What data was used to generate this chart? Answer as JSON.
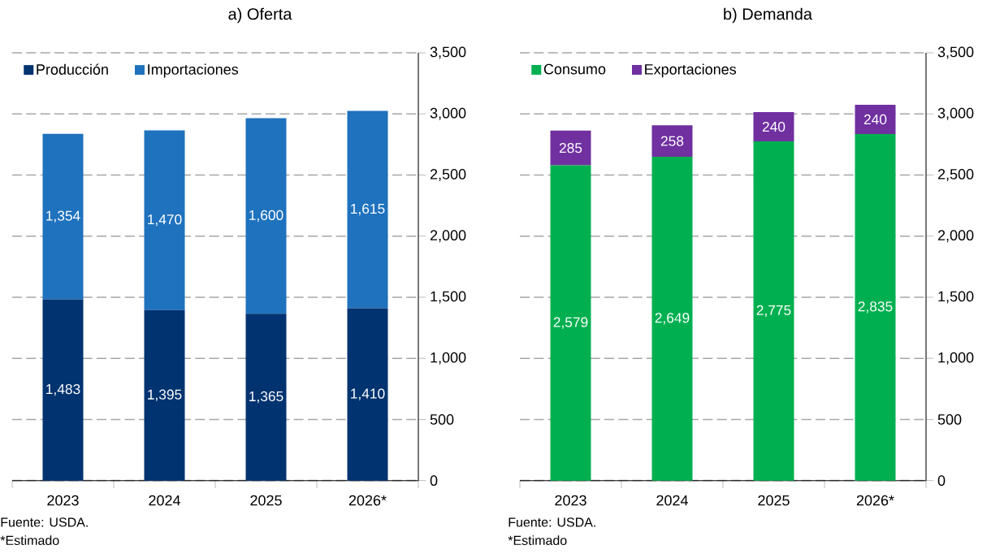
{
  "chart_data": [
    {
      "type": "bar",
      "stacked": true,
      "title": "a) Oferta",
      "categories": [
        "2023",
        "2024",
        "2025",
        "2026*"
      ],
      "series": [
        {
          "name": "Producción",
          "color": "#003370",
          "values": [
            1483,
            1395,
            1365,
            1410
          ],
          "value_labels": [
            "1,483",
            "1,395",
            "1,365",
            "1,410"
          ]
        },
        {
          "name": "Importaciones",
          "color": "#1f72bd",
          "values": [
            1354,
            1470,
            1600,
            1615
          ],
          "value_labels": [
            "1,354",
            "1,470",
            "1,600",
            "1,615"
          ]
        }
      ],
      "ylim": [
        0,
        3500
      ],
      "yticks": [
        {
          "value": 0,
          "label": "0"
        },
        {
          "value": 500,
          "label": "500"
        },
        {
          "value": 1000,
          "label": "1,000"
        },
        {
          "value": 1500,
          "label": "1,500"
        },
        {
          "value": 2000,
          "label": "2,000"
        },
        {
          "value": 2500,
          "label": "2,500"
        },
        {
          "value": 3000,
          "label": "3,000"
        },
        {
          "value": 3500,
          "label": "3,500"
        }
      ],
      "grid": "y",
      "legend": "top left",
      "annotations": [
        "Fuente: USDA.",
        "*Estimado"
      ]
    },
    {
      "type": "bar",
      "stacked": true,
      "title": "b) Demanda",
      "categories": [
        "2023",
        "2024",
        "2025",
        "2026*"
      ],
      "series": [
        {
          "name": "Consumo",
          "color": "#00b050",
          "values": [
            2579,
            2649,
            2775,
            2835
          ],
          "value_labels": [
            "2,579",
            "2,649",
            "2,775",
            "2,835"
          ]
        },
        {
          "name": "Exportaciones",
          "color": "#7030a0",
          "values": [
            285,
            258,
            240,
            240
          ],
          "data_labels": true
        }
      ],
      "ylim": [
        0,
        3500
      ],
      "yticks": [
        {
          "value": 0,
          "label": "0"
        },
        {
          "value": 500,
          "label": "500"
        },
        {
          "value": 1000,
          "label": "1,000"
        },
        {
          "value": 1500,
          "label": "1,500"
        },
        {
          "value": 2000,
          "label": "2,000"
        },
        {
          "value": 2500,
          "label": "2,500"
        },
        {
          "value": 3000,
          "label": "3,000"
        },
        {
          "value": 3500,
          "label": "3,500"
        }
      ],
      "grid": "y",
      "legend": "top left",
      "annotations": [
        "Fuente: USDA.",
        "*Estimado"
      ]
    }
  ]
}
